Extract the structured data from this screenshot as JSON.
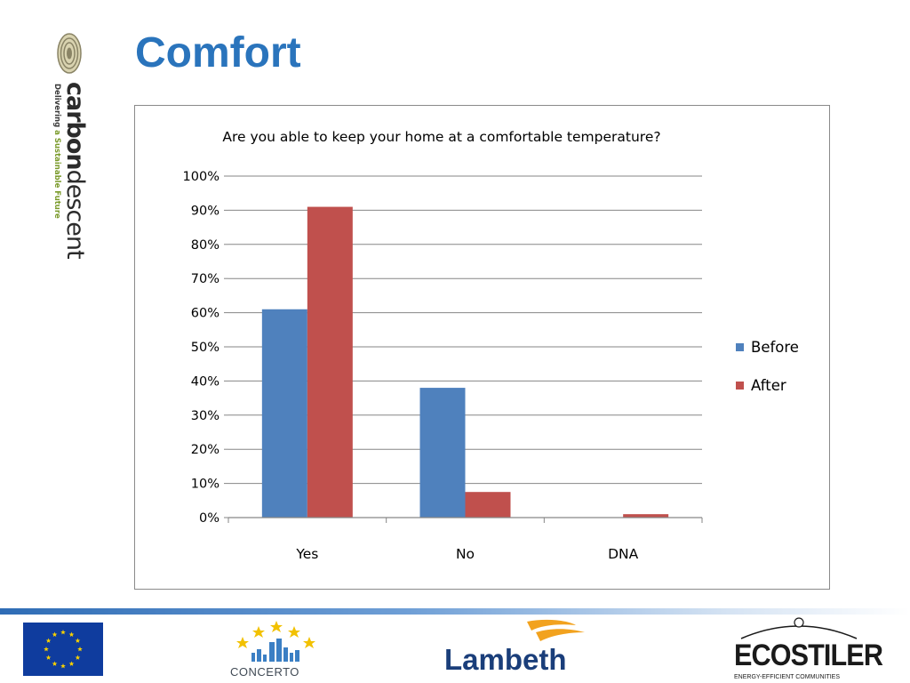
{
  "slide": {
    "title": "Comfort"
  },
  "brand": {
    "name_bold": "carbon",
    "name_light": "descent",
    "tagline_a": "Delivering ",
    "tagline_b": "a Sustainable Future"
  },
  "chart_data": {
    "type": "bar",
    "title": "Are you able to keep your home at a comfortable temperature?",
    "categories": [
      "Yes",
      "No",
      "DNA"
    ],
    "series": [
      {
        "name": "Before",
        "values": [
          61,
          38,
          0
        ],
        "color": "#4f81bd"
      },
      {
        "name": "After",
        "values": [
          91,
          7.5,
          1
        ],
        "color": "#c0504d"
      }
    ],
    "ylim": [
      0,
      100
    ],
    "ystep": 10,
    "ytick_format": "percent",
    "xlabel": "",
    "ylabel": "",
    "grid": true,
    "legend": "right"
  },
  "footer": {
    "concerto": "CONCERTO",
    "lambeth": "Lambeth",
    "ecostiler": "ECOSTILER",
    "ecostiler_tagline": "ENERGY-EFFICIENT COMMUNITIES"
  },
  "icons": {
    "eu_flag": "eu-flag-icon",
    "brand_mark": "fingerprint-logo-icon",
    "concerto_mark": "concerto-skyline-icon",
    "lambeth_mark": "lambeth-swoosh-icon"
  }
}
